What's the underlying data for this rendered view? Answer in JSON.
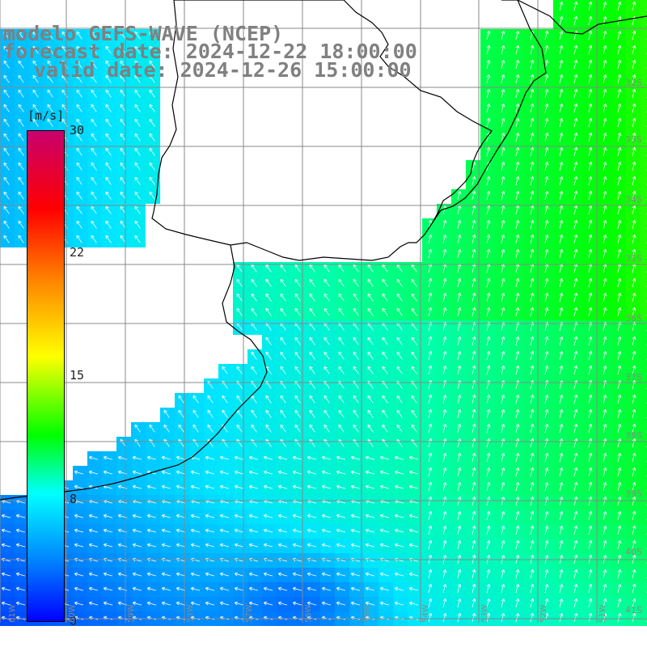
{
  "title": {
    "model": "modelo GEFS-WAVE (NCEP)",
    "forecast": "forecast date: 2024-12-22 18:00:00",
    "valid": "valid date: 2024-12-26 15:00:00"
  },
  "colorbar": {
    "unit": "[m/s]",
    "ticks": [
      "30",
      "22",
      "15",
      "8",
      "0"
    ],
    "min": 0,
    "max": 30,
    "colors": [
      "#c8006e",
      "#ff0000",
      "#ff8000",
      "#ffff00",
      "#00ff00",
      "#00ffff",
      "#0080ff",
      "#0000ff"
    ]
  },
  "lat_labels": [
    "32S",
    "33S",
    "34S",
    "35S",
    "36S",
    "37S",
    "38S",
    "39S",
    "40S",
    "41S"
  ],
  "lon_labels": [
    "61W",
    "60W",
    "59W",
    "58W",
    "57W",
    "56W",
    "55W",
    "54W",
    "53W",
    "52W",
    "51W"
  ],
  "colors": {
    "land": "#ffffff",
    "coast": "#000000",
    "grid": "#888888",
    "arrow": "#ffffff"
  }
}
